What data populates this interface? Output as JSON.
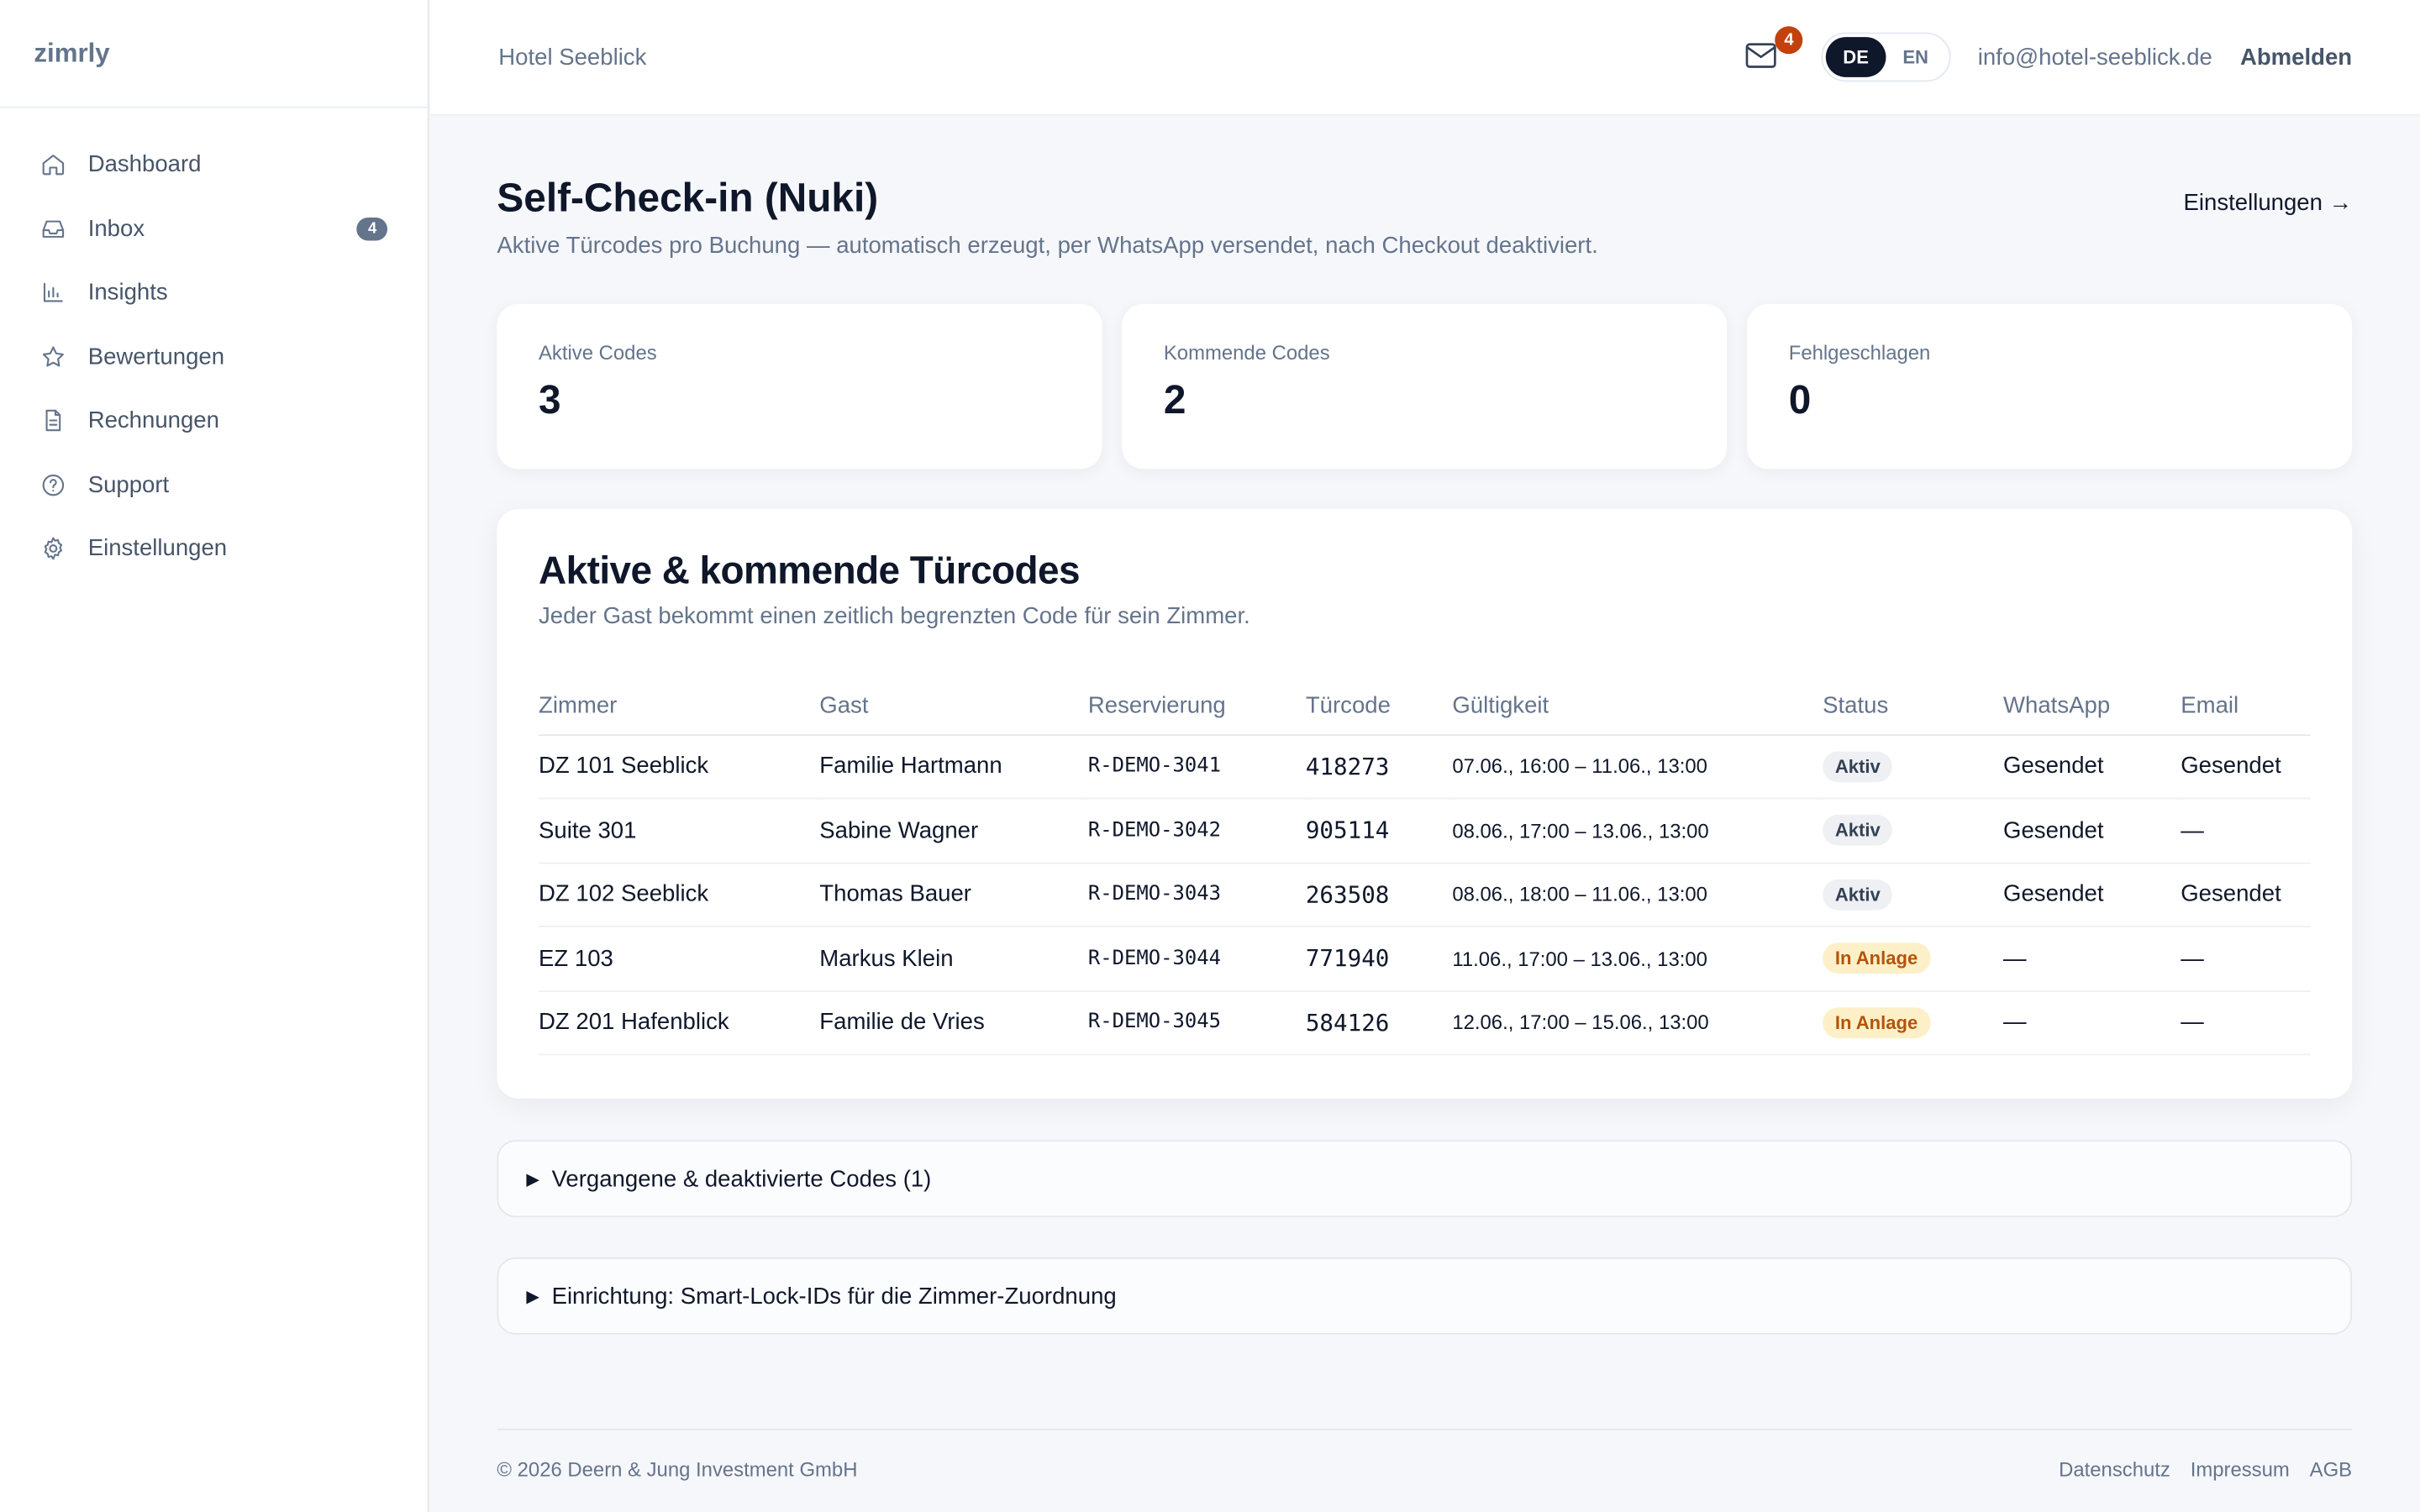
{
  "brand": "zimrly",
  "sidebar": {
    "items": [
      {
        "label": "Dashboard",
        "icon": "home-icon"
      },
      {
        "label": "Inbox",
        "icon": "inbox-icon",
        "badge": "4"
      },
      {
        "label": "Insights",
        "icon": "bar-chart-icon"
      },
      {
        "label": "Bewertungen",
        "icon": "star-icon"
      },
      {
        "label": "Rechnungen",
        "icon": "document-icon"
      },
      {
        "label": "Support",
        "icon": "help-circle-icon"
      },
      {
        "label": "Einstellungen",
        "icon": "gear-icon"
      }
    ]
  },
  "topbar": {
    "hotel": "Hotel Seeblick",
    "mail_badge": "4",
    "lang": {
      "de": "DE",
      "en": "EN",
      "active": "DE"
    },
    "email": "info@hotel-seeblick.de",
    "logout": "Abmelden"
  },
  "page": {
    "title": "Self-Check-in (Nuki)",
    "subtitle": "Aktive Türcodes pro Buchung — automatisch erzeugt, per WhatsApp versendet, nach Checkout deaktiviert.",
    "settings_link": "Einstellungen →"
  },
  "stats": [
    {
      "label": "Aktive Codes",
      "value": "3"
    },
    {
      "label": "Kommende Codes",
      "value": "2"
    },
    {
      "label": "Fehlgeschlagen",
      "value": "0"
    }
  ],
  "codes": {
    "title": "Aktive & kommende Türcodes",
    "subtitle": "Jeder Gast bekommt einen zeitlich begrenzten Code für sein Zimmer.",
    "columns": [
      "Zimmer",
      "Gast",
      "Reservierung",
      "Türcode",
      "Gültigkeit",
      "Status",
      "WhatsApp",
      "Email"
    ],
    "rows": [
      {
        "room": "DZ 101 Seeblick",
        "guest": "Familie Hartmann",
        "res": "R-DEMO-3041",
        "code": "418273",
        "valid": "07.06., 16:00 – 11.06., 13:00",
        "status": "Aktiv",
        "whatsapp": "Gesendet",
        "email": "Gesendet"
      },
      {
        "room": "Suite 301",
        "guest": "Sabine Wagner",
        "res": "R-DEMO-3042",
        "code": "905114",
        "valid": "08.06., 17:00 – 13.06., 13:00",
        "status": "Aktiv",
        "whatsapp": "Gesendet",
        "email": "—"
      },
      {
        "room": "DZ 102 Seeblick",
        "guest": "Thomas Bauer",
        "res": "R-DEMO-3043",
        "code": "263508",
        "valid": "08.06., 18:00 – 11.06., 13:00",
        "status": "Aktiv",
        "whatsapp": "Gesendet",
        "email": "Gesendet"
      },
      {
        "room": "EZ 103",
        "guest": "Markus Klein",
        "res": "R-DEMO-3044",
        "code": "771940",
        "valid": "11.06., 17:00 – 13.06., 13:00",
        "status": "In Anlage",
        "whatsapp": "—",
        "email": "—"
      },
      {
        "room": "DZ 201 Hafenblick",
        "guest": "Familie de Vries",
        "res": "R-DEMO-3045",
        "code": "584126",
        "valid": "12.06., 17:00 – 15.06., 13:00",
        "status": "In Anlage",
        "whatsapp": "—",
        "email": "—"
      }
    ]
  },
  "past_codes": "Vergangene & deaktivierte Codes (1)",
  "setup": "Einrichtung: Smart-Lock-IDs für die Zimmer-Zuordnung",
  "footer": {
    "copyright": "© 2026 Deern & Jung Investment GmbH",
    "links": [
      "Datenschutz",
      "Impressum",
      "AGB"
    ]
  }
}
